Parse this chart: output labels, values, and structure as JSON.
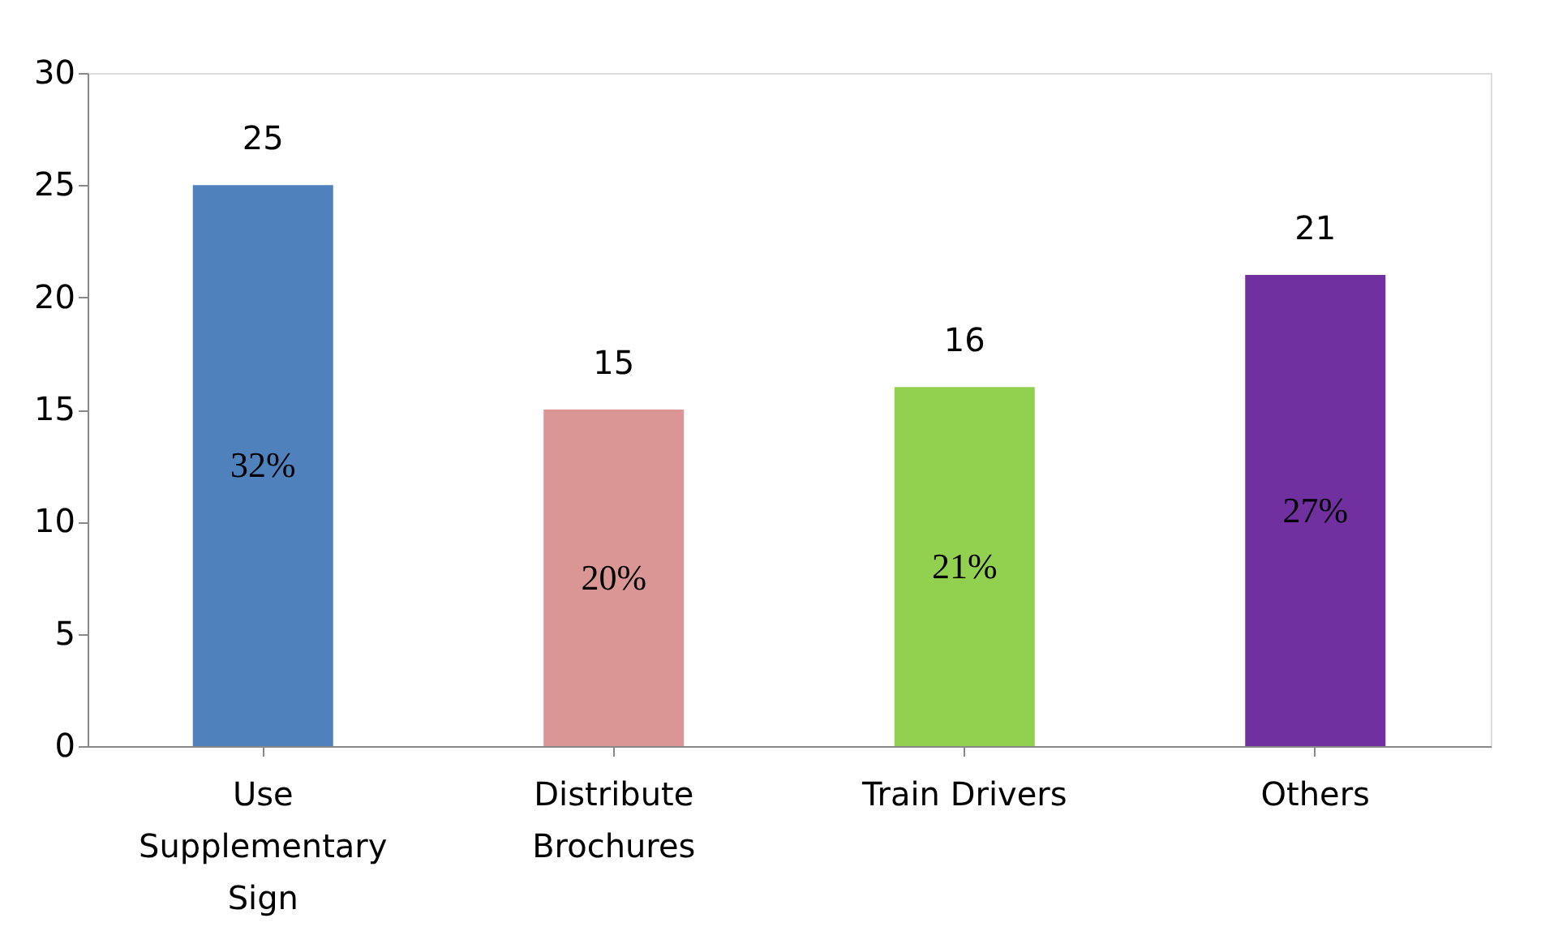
{
  "chart_data": {
    "type": "bar",
    "categories": [
      "Use Supplementary Sign",
      "Distribute Brochures",
      "Train Drivers",
      "Others"
    ],
    "values": [
      25,
      15,
      16,
      21
    ],
    "colors": [
      "#4f81bd",
      "#d99694",
      "#92d050",
      "#7030a0"
    ],
    "data_labels": true,
    "ylim": [
      0,
      30
    ],
    "yticks": [
      0,
      5,
      10,
      15,
      20,
      25,
      30
    ],
    "grid": false,
    "annotations": [
      "32%",
      "20%",
      "21%",
      "27%"
    ]
  }
}
